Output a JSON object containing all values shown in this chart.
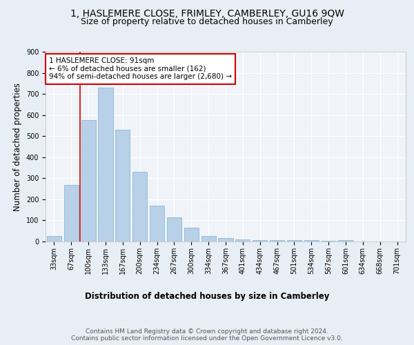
{
  "title_line1": "1, HASLEMERE CLOSE, FRIMLEY, CAMBERLEY, GU16 9QW",
  "title_line2": "Size of property relative to detached houses in Camberley",
  "xlabel": "Distribution of detached houses by size in Camberley",
  "ylabel": "Number of detached properties",
  "categories": [
    "33sqm",
    "67sqm",
    "100sqm",
    "133sqm",
    "167sqm",
    "200sqm",
    "234sqm",
    "267sqm",
    "300sqm",
    "334sqm",
    "367sqm",
    "401sqm",
    "434sqm",
    "467sqm",
    "501sqm",
    "534sqm",
    "567sqm",
    "601sqm",
    "634sqm",
    "668sqm",
    "701sqm"
  ],
  "values": [
    25,
    270,
    575,
    730,
    530,
    330,
    170,
    115,
    65,
    25,
    15,
    10,
    8,
    7,
    6,
    5,
    3,
    5,
    0,
    0,
    0
  ],
  "bar_color": "#b8d0e8",
  "bar_edge_color": "#7aafd4",
  "vline_color": "#cc0000",
  "annotation_text": "1 HASLEMERE CLOSE: 91sqm\n← 6% of detached houses are smaller (162)\n94% of semi-detached houses are larger (2,680) →",
  "annotation_box_color": "#ffffff",
  "annotation_box_edge_color": "#cc0000",
  "ylim": [
    0,
    900
  ],
  "yticks": [
    0,
    100,
    200,
    300,
    400,
    500,
    600,
    700,
    800,
    900
  ],
  "bg_color": "#e8eef5",
  "plot_bg_color": "#f0f4f9",
  "footer": "Contains HM Land Registry data © Crown copyright and database right 2024.\nContains public sector information licensed under the Open Government Licence v3.0.",
  "title_fontsize": 10,
  "subtitle_fontsize": 9,
  "axis_label_fontsize": 8.5,
  "tick_fontsize": 7,
  "footer_fontsize": 6.5
}
